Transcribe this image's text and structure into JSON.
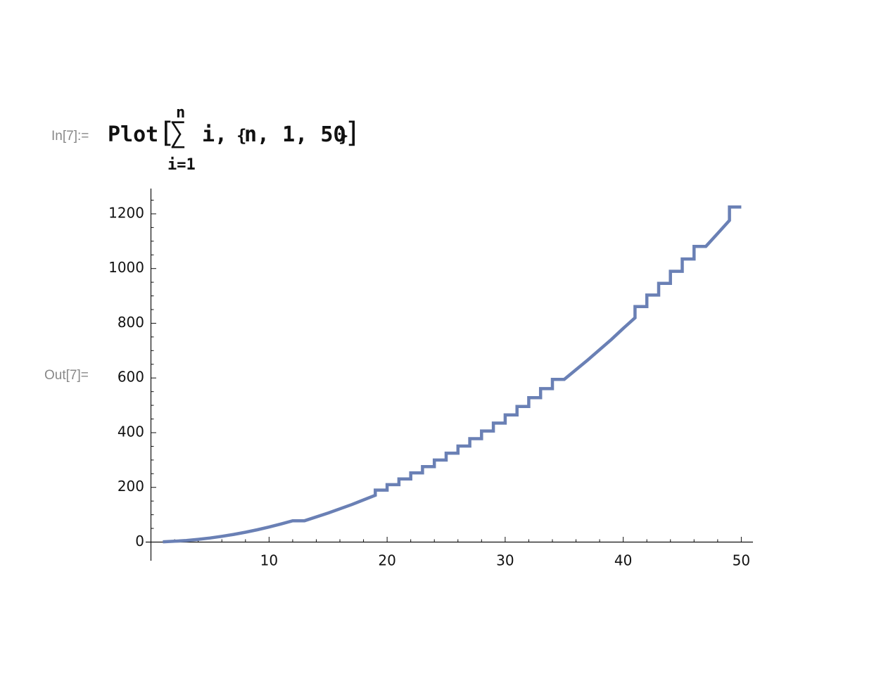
{
  "input_cell": {
    "label": "In[7]:=",
    "function_name": "Plot",
    "open_bracket": "[",
    "sum_symbol": "∑",
    "sum_upper": "n",
    "sum_lower": "i=1",
    "summand": "i",
    "comma": ",",
    "iterator_open": "{",
    "iterator_content": "n, 1, 50",
    "iterator_close": "}",
    "close_bracket": "]"
  },
  "output_cell": {
    "label": "Out[7]="
  },
  "colors": {
    "line": "#6a80b5",
    "axis": "#111111",
    "label_gray": "#888888"
  },
  "chart_data": {
    "type": "line",
    "xlim": [
      0,
      51
    ],
    "ylim": [
      0,
      1275
    ],
    "x_ticks": [
      10,
      20,
      30,
      40,
      50
    ],
    "y_ticks": [
      0,
      200,
      400,
      600,
      800,
      1000,
      1200
    ],
    "x_tick_labels": [
      "10",
      "20",
      "30",
      "40",
      "50"
    ],
    "y_tick_labels": [
      "0",
      "200",
      "400",
      "600",
      "800",
      "1000",
      "1200"
    ],
    "grid": false,
    "series": [
      {
        "points": [
          [
            1,
            1
          ],
          [
            2,
            3
          ],
          [
            3,
            6
          ],
          [
            4,
            10
          ],
          [
            5,
            15
          ],
          [
            6,
            21
          ],
          [
            7,
            28
          ],
          [
            8,
            36
          ],
          [
            9,
            45
          ],
          [
            10,
            55
          ],
          [
            11,
            66
          ],
          [
            12,
            78
          ],
          [
            13,
            78
          ],
          [
            15,
            106
          ],
          [
            17,
            137
          ],
          [
            19,
            171
          ],
          [
            19,
            190
          ],
          [
            20,
            190
          ],
          [
            20,
            210
          ],
          [
            21,
            210
          ],
          [
            21,
            231
          ],
          [
            22,
            231
          ],
          [
            22,
            253
          ],
          [
            23,
            253
          ],
          [
            23,
            276
          ],
          [
            24,
            276
          ],
          [
            24,
            300
          ],
          [
            25,
            300
          ],
          [
            25,
            325
          ],
          [
            26,
            325
          ],
          [
            26,
            351
          ],
          [
            27,
            351
          ],
          [
            27,
            378
          ],
          [
            28,
            378
          ],
          [
            28,
            406
          ],
          [
            29,
            406
          ],
          [
            29,
            435
          ],
          [
            30,
            435
          ],
          [
            30,
            465
          ],
          [
            31,
            465
          ],
          [
            31,
            496
          ],
          [
            32,
            496
          ],
          [
            32,
            528
          ],
          [
            33,
            528
          ],
          [
            33,
            561
          ],
          [
            34,
            561
          ],
          [
            34,
            595
          ],
          [
            35,
            595
          ],
          [
            37,
            666
          ],
          [
            39,
            741
          ],
          [
            40,
            781
          ],
          [
            41,
            820
          ],
          [
            41,
            861
          ],
          [
            42,
            861
          ],
          [
            42,
            903
          ],
          [
            43,
            903
          ],
          [
            43,
            946
          ],
          [
            44,
            946
          ],
          [
            44,
            990
          ],
          [
            45,
            990
          ],
          [
            45,
            1035
          ],
          [
            46,
            1035
          ],
          [
            46,
            1081
          ],
          [
            47,
            1081
          ],
          [
            48,
            1128
          ],
          [
            49,
            1176
          ],
          [
            49,
            1225
          ],
          [
            50,
            1225
          ]
        ]
      }
    ]
  }
}
